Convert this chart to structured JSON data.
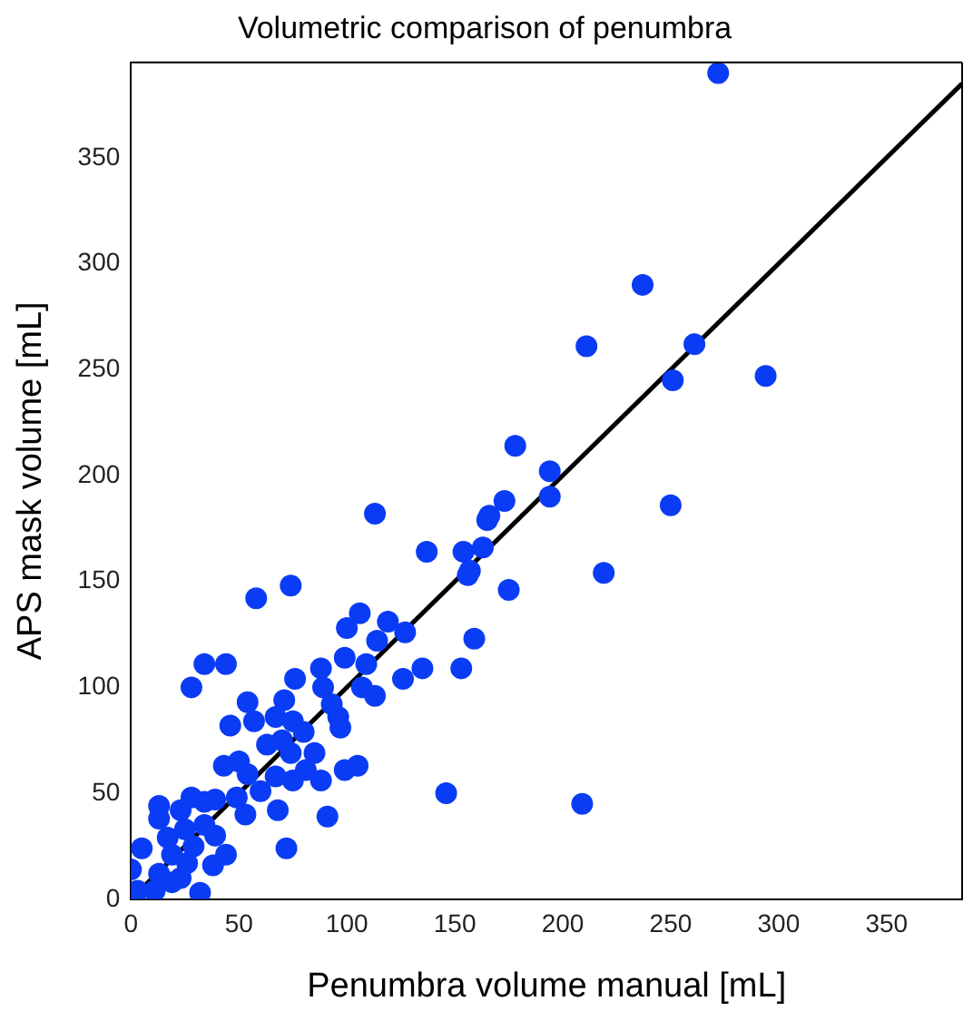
{
  "chart_data": {
    "type": "scatter",
    "title": "Volumetric comparison of penumbra",
    "xlabel": "Penumbra volume manual [mL]",
    "ylabel": "APS mask volume [mL]",
    "xlim": [
      0,
      385
    ],
    "ylim": [
      0,
      395
    ],
    "xticks": [
      0,
      50,
      100,
      150,
      200,
      250,
      300,
      350
    ],
    "yticks": [
      0,
      50,
      100,
      150,
      200,
      250,
      300,
      350
    ],
    "grid": false,
    "legend": false,
    "marker": "circle",
    "series": [
      {
        "color": "#0a3cf5",
        "x": [
          272,
          237,
          211,
          261,
          251,
          294,
          178,
          194,
          173,
          166,
          194,
          250,
          154,
          163,
          157,
          219,
          156,
          175,
          165,
          159,
          153,
          146,
          209,
          137,
          113,
          74,
          58,
          106,
          100,
          119,
          114,
          127,
          34,
          44,
          28,
          99,
          109,
          135,
          126,
          107,
          113,
          88,
          76,
          89,
          71,
          54,
          93,
          96,
          97,
          57,
          46,
          67,
          75,
          80,
          63,
          70,
          43,
          50,
          54,
          85,
          74,
          81,
          88,
          99,
          105,
          67,
          75,
          60,
          49,
          39,
          68,
          53,
          91,
          72,
          34,
          28,
          13,
          23,
          13,
          34,
          25,
          39,
          17,
          29,
          19,
          5,
          38,
          26,
          0,
          13,
          3,
          11,
          19,
          32,
          23,
          44
        ],
        "values": [
          390,
          290,
          261,
          262,
          245,
          247,
          214,
          202,
          188,
          181,
          190,
          186,
          164,
          166,
          155,
          154,
          153,
          146,
          179,
          123,
          109,
          50,
          45,
          164,
          182,
          148,
          142,
          135,
          128,
          131,
          122,
          126,
          111,
          111,
          100,
          114,
          111,
          109,
          104,
          100,
          96,
          109,
          104,
          100,
          94,
          93,
          92,
          86,
          81,
          84,
          82,
          86,
          84,
          79,
          73,
          75,
          63,
          65,
          59,
          69,
          69,
          61,
          56,
          61,
          63,
          58,
          56,
          51,
          48,
          47,
          42,
          40,
          39,
          24,
          46,
          48,
          44,
          42,
          38,
          35,
          33,
          30,
          29,
          25,
          21,
          24,
          16,
          17,
          14,
          12,
          4,
          4,
          8,
          3,
          10,
          21
        ]
      },
      {
        "type": "line",
        "color": "#000000",
        "x": [
          0,
          385
        ],
        "values": [
          0,
          385
        ],
        "marker": "none",
        "line_style": "solid"
      }
    ]
  }
}
